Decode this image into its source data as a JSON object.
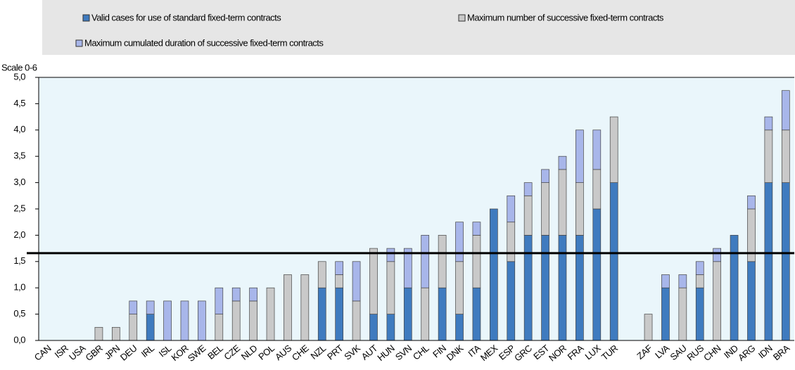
{
  "chart_data": {
    "type": "stacked_bar",
    "y_label": "Scale 0-6",
    "categories": [
      "CAN",
      "ISR",
      "USA",
      "GBR",
      "JPN",
      "DEU",
      "IRL",
      "ISL",
      "KOR",
      "SWE",
      "BEL",
      "CZE",
      "NLD",
      "POL",
      "AUS",
      "CHE",
      "NZL",
      "PRT",
      "SVK",
      "AUT",
      "HUN",
      "SVN",
      "CHL",
      "FIN",
      "DNK",
      "ITA",
      "MEX",
      "ESP",
      "GRC",
      "EST",
      "NOR",
      "FRA",
      "LUX",
      "TUR",
      null,
      "ZAF",
      "LVA",
      "SAU",
      "RUS",
      "CHN",
      "IND",
      "ARG",
      "IDN",
      "BRA"
    ],
    "series": [
      {
        "name": "Valid cases for use of standard fixed-term contracts",
        "color": "#3f7bbf",
        "values": [
          0,
          0,
          0,
          0,
          0,
          0,
          0.5,
          0,
          0,
          0,
          0,
          0,
          0,
          0,
          0,
          0,
          1,
          1,
          0,
          0.5,
          0.5,
          1,
          0,
          1,
          0.5,
          1,
          2.5,
          1.5,
          2,
          2,
          2,
          2,
          2.5,
          3,
          null,
          0,
          1,
          0,
          1,
          0,
          2,
          1.5,
          3,
          3
        ]
      },
      {
        "name": "Maximum number of successive fixed-term contracts",
        "color": "#c9c9c9",
        "values": [
          0,
          0,
          0,
          0.25,
          0.25,
          0.5,
          0,
          0,
          0,
          0,
          0.5,
          0.75,
          0.75,
          1,
          1.25,
          1.25,
          0.5,
          0.25,
          0.75,
          1.25,
          1,
          0,
          1,
          1,
          1,
          1,
          0,
          0.75,
          0.75,
          1,
          1.25,
          1,
          0.75,
          1.25,
          null,
          0.5,
          0,
          1,
          0.25,
          1.5,
          0,
          1,
          1,
          1
        ]
      },
      {
        "name": "Maximum cumulated duration of successive fixed-term contracts",
        "color": "#a8b6ea",
        "values": [
          0,
          0,
          0,
          0,
          0,
          0.25,
          0.25,
          0.75,
          0.75,
          0.75,
          0.5,
          0.25,
          0.25,
          0,
          0,
          0,
          0,
          0.25,
          0.75,
          0,
          0.25,
          0.75,
          1,
          0,
          0.75,
          0.25,
          0,
          0.5,
          0.25,
          0.25,
          0.25,
          1,
          0.75,
          0,
          null,
          0,
          0.25,
          0.25,
          0.25,
          0.25,
          0,
          0.25,
          0.25,
          0.75
        ]
      }
    ],
    "reference_line": 1.66,
    "ylim": [
      0,
      5
    ],
    "yticks": [
      {
        "value": 0,
        "label": "0,0"
      },
      {
        "value": 0.5,
        "label": "0,5"
      },
      {
        "value": 1,
        "label": "1,0"
      },
      {
        "value": 1.5,
        "label": "1,5"
      },
      {
        "value": 2,
        "label": "2,0"
      },
      {
        "value": 2.5,
        "label": "2,5"
      },
      {
        "value": 3,
        "label": "3,0"
      },
      {
        "value": 3.5,
        "label": "3,5"
      },
      {
        "value": 4,
        "label": "4,0"
      },
      {
        "value": 4.5,
        "label": "4,5"
      },
      {
        "value": 5,
        "label": "5,0"
      }
    ],
    "legend": "top"
  }
}
